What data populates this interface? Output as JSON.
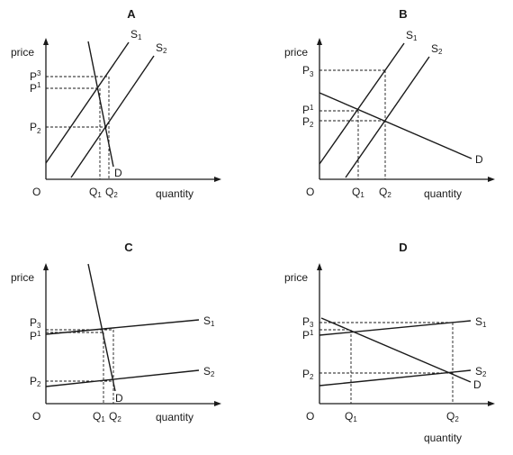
{
  "panels": [
    {
      "id": "A",
      "title": "A",
      "y_axis_label": "price",
      "x_axis_label": "quantity",
      "origin_label": "O",
      "price_labels": [
        {
          "main": "P",
          "sub": "3"
        },
        {
          "main": "P",
          "sub": "1"
        },
        {
          "main": "P",
          "sub": "2"
        }
      ],
      "quantity_labels": [
        {
          "main": "Q",
          "sub": "1"
        },
        {
          "main": "Q",
          "sub": "2"
        }
      ],
      "curve_labels": [
        {
          "main": "S",
          "sub": "1"
        },
        {
          "main": "S",
          "sub": "2"
        },
        {
          "main": "D",
          "sub": ""
        }
      ]
    },
    {
      "id": "B",
      "title": "B",
      "y_axis_label": "price",
      "x_axis_label": "quantity",
      "origin_label": "O",
      "price_labels": [
        {
          "main": "P",
          "sub": "3"
        },
        {
          "main": "P",
          "sub": "1"
        },
        {
          "main": "P",
          "sub": "2"
        }
      ],
      "quantity_labels": [
        {
          "main": "Q",
          "sub": "1"
        },
        {
          "main": "Q",
          "sub": "2"
        }
      ],
      "curve_labels": [
        {
          "main": "S",
          "sub": "1"
        },
        {
          "main": "S",
          "sub": "2"
        },
        {
          "main": "D",
          "sub": ""
        }
      ]
    },
    {
      "id": "C",
      "title": "C",
      "y_axis_label": "price",
      "x_axis_label": "quantity",
      "origin_label": "O",
      "price_labels": [
        {
          "main": "P",
          "sub": "3"
        },
        {
          "main": "P",
          "sub": "1"
        },
        {
          "main": "P",
          "sub": "2"
        }
      ],
      "quantity_labels": [
        {
          "main": "Q",
          "sub": "1"
        },
        {
          "main": "Q",
          "sub": "2"
        }
      ],
      "curve_labels": [
        {
          "main": "S",
          "sub": "1"
        },
        {
          "main": "S",
          "sub": "2"
        },
        {
          "main": "D",
          "sub": ""
        }
      ]
    },
    {
      "id": "D",
      "title": "D",
      "y_axis_label": "price",
      "x_axis_label": "quantity",
      "origin_label": "O",
      "price_labels": [
        {
          "main": "P",
          "sub": "3"
        },
        {
          "main": "P",
          "sub": "1"
        },
        {
          "main": "P",
          "sub": "2"
        }
      ],
      "quantity_labels": [
        {
          "main": "Q",
          "sub": "1"
        },
        {
          "main": "Q",
          "sub": "2"
        }
      ],
      "curve_labels": [
        {
          "main": "S",
          "sub": "1"
        },
        {
          "main": "S",
          "sub": "2"
        },
        {
          "main": "D",
          "sub": ""
        }
      ]
    }
  ]
}
